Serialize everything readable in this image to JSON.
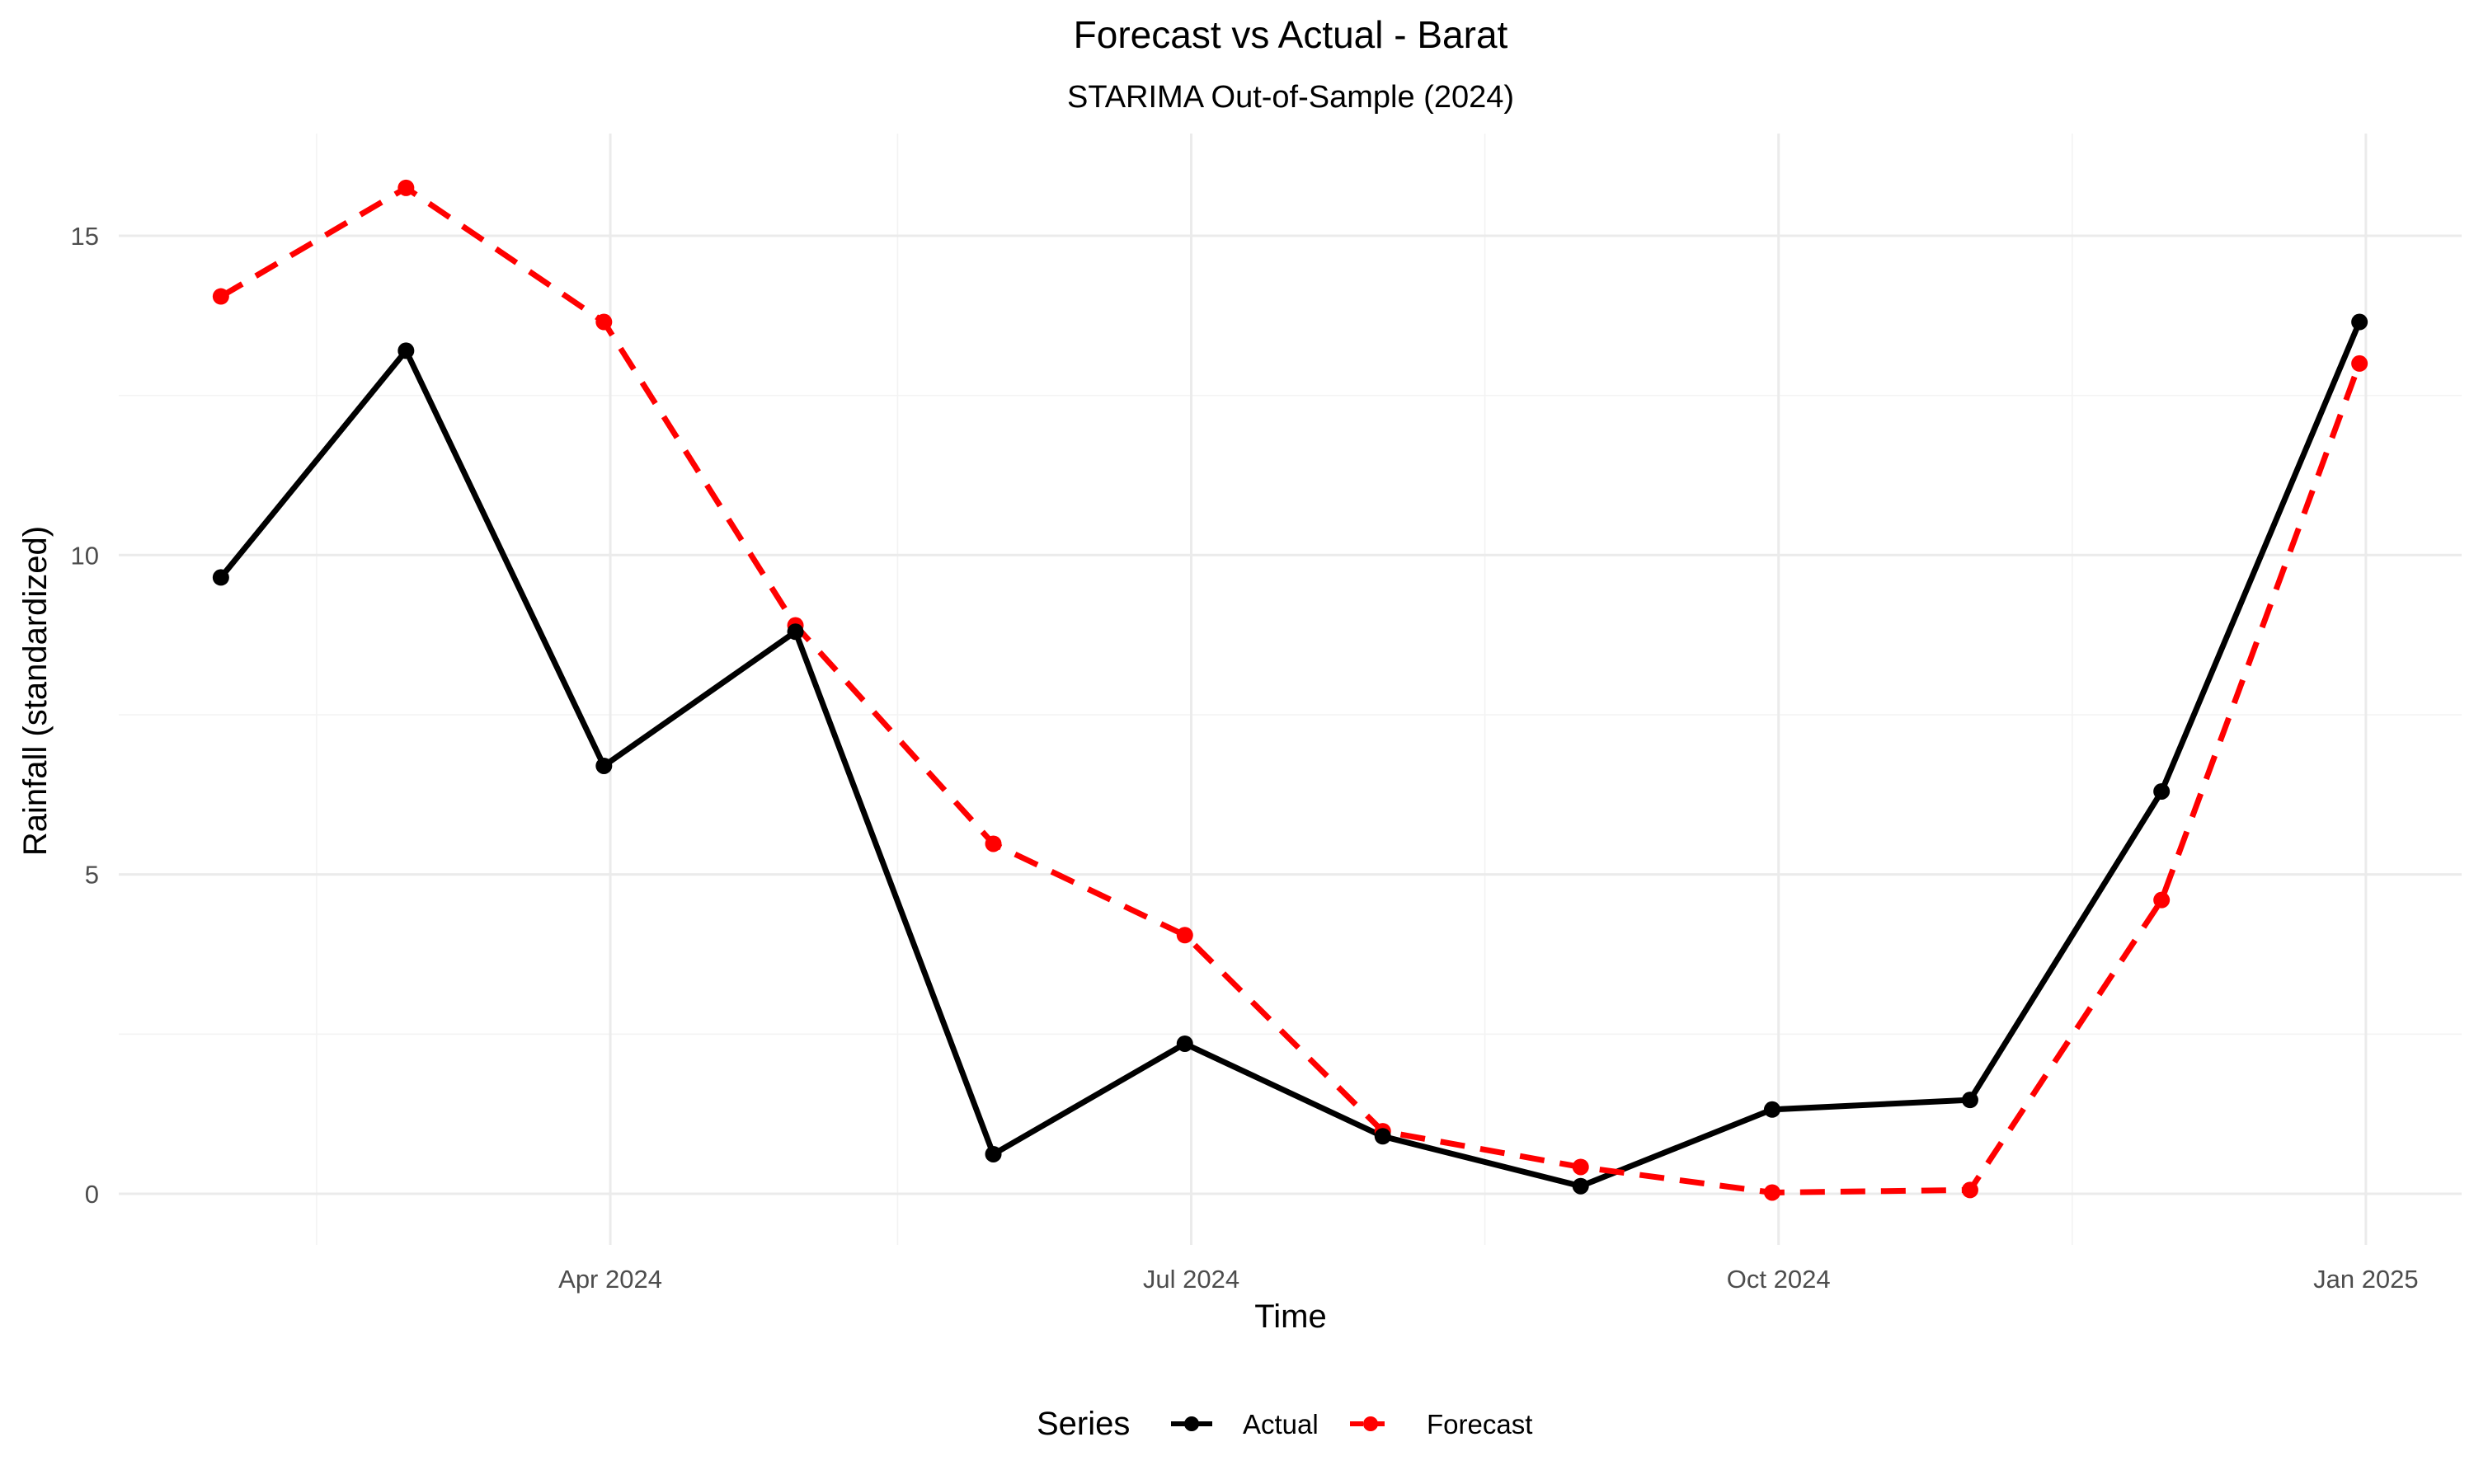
{
  "chart_data": {
    "type": "line",
    "title": "Forecast vs Actual - Barat",
    "subtitle": "STARIMA Out-of-Sample (2024)",
    "xlabel": "Time",
    "ylabel": "Rainfall (standardized)",
    "x": [
      "2024-01-31",
      "2024-02-29",
      "2024-03-31",
      "2024-04-30",
      "2024-05-31",
      "2024-06-30",
      "2024-07-31",
      "2024-08-31",
      "2024-09-30",
      "2024-10-31",
      "2024-11-30",
      "2024-12-31"
    ],
    "series": [
      {
        "name": "Actual",
        "color": "#000000",
        "dash": "solid",
        "values": [
          9.65,
          13.2,
          6.7,
          8.8,
          0.62,
          2.35,
          0.9,
          0.12,
          1.32,
          1.47,
          6.3,
          13.65
        ]
      },
      {
        "name": "Forecast",
        "color": "#ff0000",
        "dash": "dashed",
        "values": [
          14.05,
          15.75,
          13.65,
          8.9,
          5.48,
          4.05,
          0.98,
          0.42,
          0.02,
          0.06,
          4.6,
          13.0
        ]
      }
    ],
    "x_ticks": [
      {
        "date": "2024-04-01",
        "label": "Apr 2024"
      },
      {
        "date": "2024-07-01",
        "label": "Jul 2024"
      },
      {
        "date": "2024-10-01",
        "label": "Oct 2024"
      },
      {
        "date": "2025-01-01",
        "label": "Jan 2025"
      }
    ],
    "x_minor_ticks": [
      "2024-02-15",
      "2024-05-16",
      "2024-08-16",
      "2024-11-16"
    ],
    "xlim": [
      "2024-01-15",
      "2025-01-16"
    ],
    "y_ticks": [
      0,
      5,
      10,
      15
    ],
    "y_minor_ticks": [
      2.5,
      7.5,
      12.5
    ],
    "ylim": [
      -0.8,
      16.6
    ],
    "grid": true,
    "legend": {
      "title": "Series",
      "position": "bottom"
    }
  }
}
